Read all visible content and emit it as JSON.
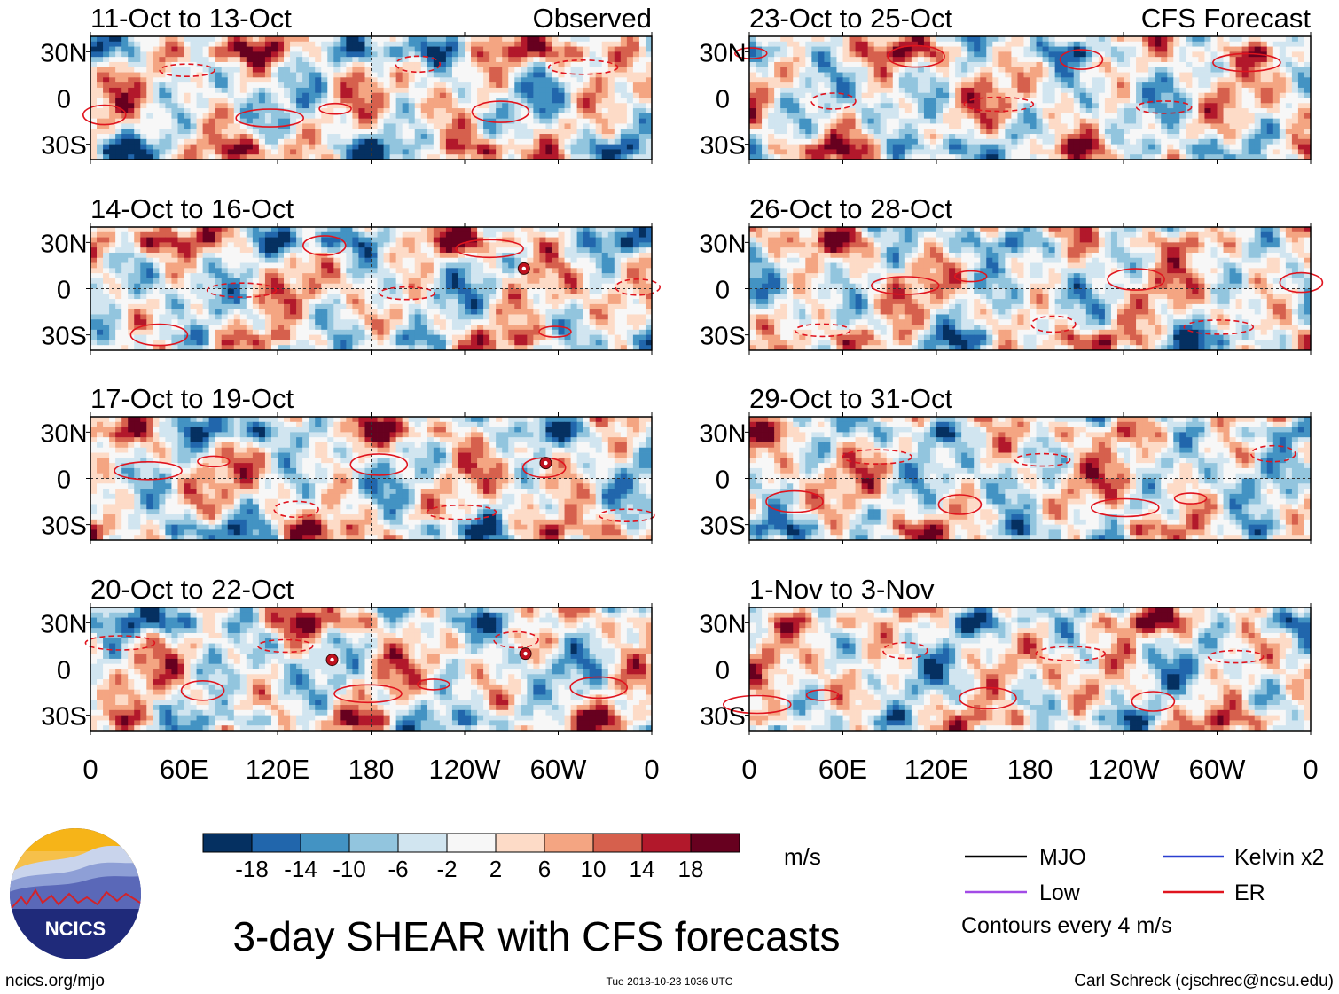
{
  "panels": [
    {
      "date_range": "11-Oct to 13-Oct",
      "tag": "Observed",
      "seed": 11,
      "storms": []
    },
    {
      "date_range": "14-Oct to 16-Oct",
      "tag": "",
      "seed": 14,
      "storms": [
        {
          "lon": 278,
          "lat": 13
        }
      ]
    },
    {
      "date_range": "17-Oct to 19-Oct",
      "tag": "",
      "seed": 17,
      "storms": [
        {
          "lon": 292,
          "lat": 10
        }
      ]
    },
    {
      "date_range": "20-Oct to 22-Oct",
      "tag": "",
      "seed": 20,
      "storms": [
        {
          "lon": 155,
          "lat": 6
        },
        {
          "lon": 279,
          "lat": 10
        }
      ]
    },
    {
      "date_range": "23-Oct to 25-Oct",
      "tag": "CFS Forecast",
      "seed": 23,
      "storms": []
    },
    {
      "date_range": "26-Oct to 28-Oct",
      "tag": "",
      "seed": 26,
      "storms": []
    },
    {
      "date_range": "29-Oct to 31-Oct",
      "tag": "",
      "seed": 29,
      "storms": []
    },
    {
      "date_range": "1-Nov to 3-Nov",
      "tag": "",
      "seed": 1,
      "storms": []
    }
  ],
  "lat_ticks": [
    {
      "lat": 30,
      "label": "30N"
    },
    {
      "lat": 0,
      "label": "0"
    },
    {
      "lat": -30,
      "label": "30S"
    }
  ],
  "lon_ticks": [
    {
      "lon": 0,
      "label": "0"
    },
    {
      "lon": 60,
      "label": "60E"
    },
    {
      "lon": 120,
      "label": "120E"
    },
    {
      "lon": 180,
      "label": "180"
    },
    {
      "lon": 240,
      "label": "120W"
    },
    {
      "lon": 300,
      "label": "60W"
    },
    {
      "lon": 360,
      "label": "0"
    }
  ],
  "colorbar": {
    "colors": [
      "#053061",
      "#2166ac",
      "#4393c3",
      "#92c5de",
      "#d1e5f0",
      "#f7f7f7",
      "#fddbc7",
      "#f4a582",
      "#d6604d",
      "#b2182b",
      "#67001f"
    ],
    "labels": [
      "-18",
      "-14",
      "-10",
      "-6",
      "-2",
      "2",
      "6",
      "10",
      "14",
      "18"
    ],
    "unit": "m/s"
  },
  "legend": {
    "items": [
      {
        "label": "MJO",
        "color": "#000000"
      },
      {
        "label": "Kelvin x2",
        "color": "#2a3fd0"
      },
      {
        "label": "Low",
        "color": "#a24be6"
      },
      {
        "label": "ER",
        "color": "#e0141e"
      }
    ],
    "note": "Contours every 4 m/s"
  },
  "logo": {
    "text": "NCICS"
  },
  "title": "3-day SHEAR with CFS forecasts",
  "footer": {
    "url": "ncics.org/mjo",
    "timestamp": "Tue 2018-10-23 1036 UTC",
    "credit": "Carl Schreck (cjschrec@ncsu.edu)"
  }
}
